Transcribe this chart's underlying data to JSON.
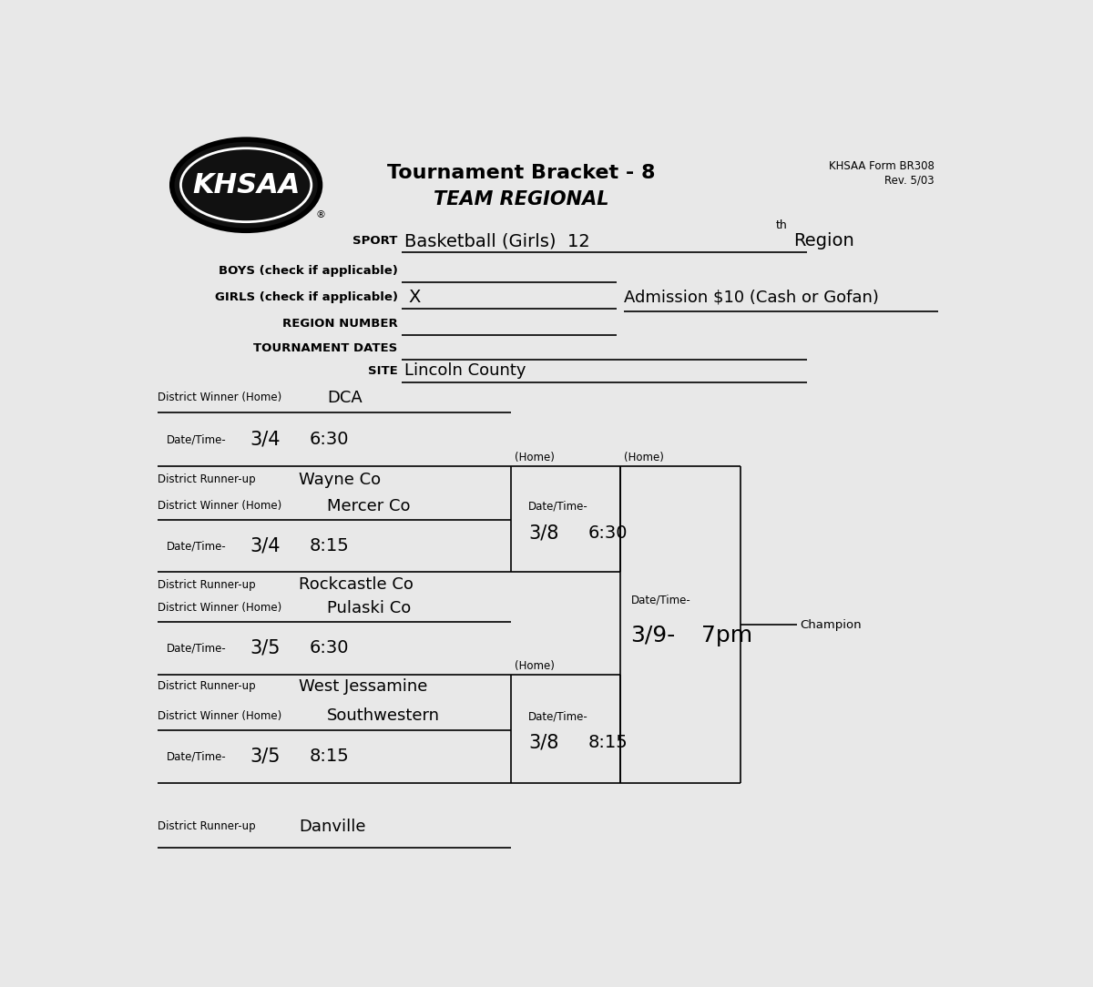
{
  "bg_color": "#e8e8e8",
  "title_line1": "Tournament Bracket - 8",
  "title_line2": "TEAM REGIONAL",
  "form_text": "KHSAA Form BR308\nRev. 5/03",
  "sport_label": "SPORT",
  "boys_label": "BOYS (check if applicable)",
  "girls_label": "GIRLS (check if applicable)",
  "girls_check": "X",
  "region_label": "REGION NUMBER",
  "dates_label": "TOURNAMENT DATES",
  "site_label": "SITE",
  "site_value": "Lincoln County",
  "admission_text": "Admission $10 (Cash or Gofan)",
  "sport_handwritten": "Basketball (Girls)  12",
  "sport_th": "th",
  "sport_region": "Region",
  "team_dca": "DCA",
  "team_wayne": "Wayne Co",
  "team_mercer": "Mercer Co",
  "team_rockcastle": "Rockcastle Co",
  "team_pulaski": "Pulaski Co",
  "team_westjes": "West Jessamine",
  "team_southwestern": "Southwestern",
  "team_danville": "Danville",
  "g1_date": "3/4",
  "g1_time": "6:30",
  "g2_date": "3/4",
  "g2_time": "8:15",
  "g3_date": "3/5",
  "g3_time": "6:30",
  "g4_date": "3/5",
  "g4_time": "8:15",
  "s1_date": "3/8",
  "s1_time": "6:30",
  "s2_date": "3/8",
  "s2_time": "8:15",
  "f_date": "3/9-",
  "f_time": "7pm",
  "label_district_winner": "District Winner (Home)",
  "label_district_runner": "District Runner-up",
  "label_datetime": "Date/Time-",
  "label_home": "(Home)",
  "label_champion": "Champion"
}
